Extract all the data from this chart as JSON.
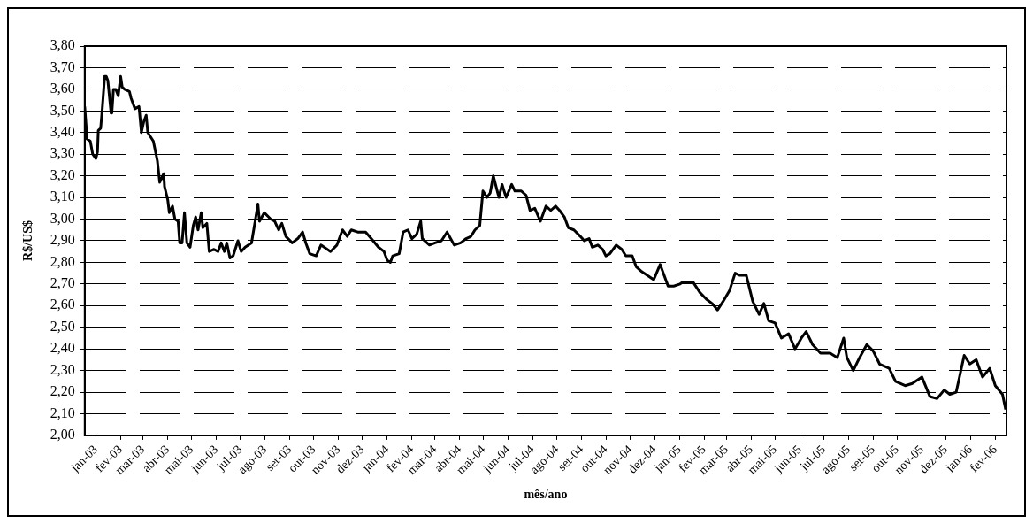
{
  "chart_data": {
    "type": "line",
    "xlabel": "mês/ano",
    "ylabel": "R$/US$",
    "x": [
      "2003-01-01",
      "2003-01-04",
      "2003-01-08",
      "2003-01-11",
      "2003-01-15",
      "2003-01-17",
      "2003-01-18",
      "2003-01-21",
      "2003-01-23",
      "2003-01-26",
      "2003-01-28",
      "2003-01-30",
      "2003-02-03",
      "2003-02-04",
      "2003-02-06",
      "2003-02-09",
      "2003-02-12",
      "2003-02-15",
      "2003-02-17",
      "2003-02-20",
      "2003-02-26",
      "2003-02-28",
      "2003-03-05",
      "2003-03-10",
      "2003-03-13",
      "2003-03-16",
      "2003-03-19",
      "2003-03-21",
      "2003-03-28",
      "2003-04-02",
      "2003-04-05",
      "2003-04-10",
      "2003-04-11",
      "2003-04-15",
      "2003-04-17",
      "2003-04-21",
      "2003-04-24",
      "2003-04-28",
      "2003-04-30",
      "2003-05-03",
      "2003-05-06",
      "2003-05-09",
      "2003-05-13",
      "2003-05-17",
      "2003-05-20",
      "2003-05-23",
      "2003-05-27",
      "2003-05-29",
      "2003-06-03",
      "2003-06-06",
      "2003-06-12",
      "2003-06-17",
      "2003-06-21",
      "2003-06-25",
      "2003-06-28",
      "2003-07-02",
      "2003-07-06",
      "2003-07-12",
      "2003-07-16",
      "2003-07-21",
      "2003-07-29",
      "2003-08-03",
      "2003-08-06",
      "2003-08-08",
      "2003-08-14",
      "2003-08-22",
      "2003-08-27",
      "2003-09-01",
      "2003-09-05",
      "2003-09-10",
      "2003-09-18",
      "2003-09-25",
      "2003-10-01",
      "2003-10-05",
      "2003-10-10",
      "2003-10-18",
      "2003-10-24",
      "2003-11-01",
      "2003-11-05",
      "2003-11-13",
      "2003-11-20",
      "2003-11-26",
      "2003-12-01",
      "2003-12-09",
      "2003-12-19",
      "2003-12-26",
      "2004-01-04",
      "2004-01-11",
      "2004-01-15",
      "2004-01-19",
      "2004-01-22",
      "2004-01-30",
      "2004-02-04",
      "2004-02-10",
      "2004-02-15",
      "2004-02-21",
      "2004-02-26",
      "2004-02-28",
      "2004-03-08",
      "2004-03-15",
      "2004-03-23",
      "2004-03-30",
      "2004-04-08",
      "2004-04-16",
      "2004-04-23",
      "2004-04-29",
      "2004-05-04",
      "2004-05-10",
      "2004-05-14",
      "2004-05-19",
      "2004-05-23",
      "2004-05-27",
      "2004-06-03",
      "2004-06-07",
      "2004-06-12",
      "2004-06-19",
      "2004-06-23",
      "2004-07-01",
      "2004-07-07",
      "2004-07-12",
      "2004-07-18",
      "2004-07-25",
      "2004-08-01",
      "2004-08-07",
      "2004-08-13",
      "2004-08-18",
      "2004-08-24",
      "2004-08-29",
      "2004-09-05",
      "2004-09-13",
      "2004-09-18",
      "2004-09-24",
      "2004-09-28",
      "2004-10-05",
      "2004-10-11",
      "2004-10-15",
      "2004-10-20",
      "2004-10-28",
      "2004-11-04",
      "2004-11-09",
      "2004-11-17",
      "2004-11-22",
      "2004-11-28",
      "2004-12-14",
      "2004-12-22",
      "2005-01-01",
      "2005-01-08",
      "2005-01-16",
      "2005-01-20",
      "2005-01-25",
      "2005-02-01",
      "2005-02-10",
      "2005-02-18",
      "2005-02-25",
      "2005-03-04",
      "2005-03-11",
      "2005-03-19",
      "2005-03-26",
      "2005-04-01",
      "2005-04-09",
      "2005-04-17",
      "2005-04-25",
      "2005-05-01",
      "2005-05-07",
      "2005-05-15",
      "2005-05-23",
      "2005-06-01",
      "2005-06-09",
      "2005-06-17",
      "2005-06-23",
      "2005-07-01",
      "2005-07-11",
      "2005-07-23",
      "2005-08-01",
      "2005-08-09",
      "2005-08-13",
      "2005-08-21",
      "2005-08-29",
      "2005-09-07",
      "2005-09-15",
      "2005-09-23",
      "2005-10-05",
      "2005-10-13",
      "2005-10-25",
      "2005-11-03",
      "2005-11-15",
      "2005-11-25",
      "2005-12-04",
      "2005-12-13",
      "2005-12-20",
      "2005-12-28",
      "2006-01-07",
      "2006-01-14",
      "2006-01-22",
      "2006-01-30",
      "2006-02-08",
      "2006-02-15",
      "2006-02-24",
      "2006-02-28"
    ],
    "series": [
      {
        "color": "#000000",
        "values": [
          3.52,
          3.37,
          3.36,
          3.3,
          3.28,
          3.31,
          3.41,
          3.42,
          3.51,
          3.66,
          3.66,
          3.64,
          3.49,
          3.49,
          3.6,
          3.6,
          3.57,
          3.66,
          3.61,
          3.6,
          3.59,
          3.56,
          3.51,
          3.52,
          3.4,
          3.45,
          3.48,
          3.4,
          3.36,
          3.27,
          3.17,
          3.21,
          3.15,
          3.09,
          3.03,
          3.06,
          3.0,
          2.99,
          2.89,
          2.89,
          3.03,
          2.89,
          2.87,
          2.97,
          3.01,
          2.95,
          3.03,
          2.96,
          2.98,
          2.85,
          2.86,
          2.85,
          2.89,
          2.85,
          2.89,
          2.82,
          2.83,
          2.9,
          2.85,
          2.87,
          2.89,
          3.0,
          3.07,
          2.99,
          3.03,
          3.0,
          2.99,
          2.95,
          2.98,
          2.92,
          2.89,
          2.91,
          2.94,
          2.89,
          2.84,
          2.83,
          2.88,
          2.86,
          2.85,
          2.88,
          2.95,
          2.92,
          2.95,
          2.94,
          2.94,
          2.91,
          2.87,
          2.85,
          2.81,
          2.8,
          2.83,
          2.84,
          2.94,
          2.95,
          2.91,
          2.93,
          2.99,
          2.91,
          2.88,
          2.89,
          2.9,
          2.94,
          2.88,
          2.89,
          2.91,
          2.92,
          2.95,
          2.97,
          3.13,
          3.1,
          3.12,
          3.2,
          3.1,
          3.16,
          3.1,
          3.16,
          3.13,
          3.13,
          3.11,
          3.04,
          3.05,
          2.99,
          3.06,
          3.04,
          3.06,
          3.04,
          3.01,
          2.96,
          2.95,
          2.92,
          2.9,
          2.91,
          2.87,
          2.88,
          2.86,
          2.83,
          2.84,
          2.88,
          2.86,
          2.83,
          2.83,
          2.78,
          2.76,
          2.72,
          2.79,
          2.69,
          2.69,
          2.7,
          2.71,
          2.71,
          2.71,
          2.66,
          2.63,
          2.61,
          2.58,
          2.62,
          2.67,
          2.75,
          2.74,
          2.74,
          2.62,
          2.56,
          2.61,
          2.53,
          2.52,
          2.45,
          2.47,
          2.4,
          2.45,
          2.48,
          2.42,
          2.38,
          2.38,
          2.36,
          2.45,
          2.36,
          2.3,
          2.36,
          2.42,
          2.39,
          2.33,
          2.31,
          2.25,
          2.23,
          2.24,
          2.27,
          2.18,
          2.17,
          2.21,
          2.19,
          2.2,
          2.37,
          2.33,
          2.35,
          2.27,
          2.31,
          2.23,
          2.19,
          2.12
        ]
      }
    ],
    "xlim": [
      "2003-01-01",
      "2006-03-01"
    ],
    "xticks": [
      {
        "value": "2003-01-15",
        "label": "jan-03"
      },
      {
        "value": "2003-02-15",
        "label": "fev-03"
      },
      {
        "value": "2003-03-15",
        "label": "mar-03"
      },
      {
        "value": "2003-04-15",
        "label": "abr-03"
      },
      {
        "value": "2003-05-15",
        "label": "mai-03"
      },
      {
        "value": "2003-06-15",
        "label": "jun-03"
      },
      {
        "value": "2003-07-15",
        "label": "jul-03"
      },
      {
        "value": "2003-08-15",
        "label": "ago-03"
      },
      {
        "value": "2003-09-15",
        "label": "set-03"
      },
      {
        "value": "2003-10-15",
        "label": "out-03"
      },
      {
        "value": "2003-11-15",
        "label": "nov-03"
      },
      {
        "value": "2003-12-15",
        "label": "dez-03"
      },
      {
        "value": "2004-01-15",
        "label": "jan-04"
      },
      {
        "value": "2004-02-15",
        "label": "fev-04"
      },
      {
        "value": "2004-03-15",
        "label": "mar-04"
      },
      {
        "value": "2004-04-15",
        "label": "abr-04"
      },
      {
        "value": "2004-05-15",
        "label": "mai-04"
      },
      {
        "value": "2004-06-15",
        "label": "jun-04"
      },
      {
        "value": "2004-07-15",
        "label": "jul-04"
      },
      {
        "value": "2004-08-15",
        "label": "ago-04"
      },
      {
        "value": "2004-09-15",
        "label": "set-04"
      },
      {
        "value": "2004-10-15",
        "label": "out-04"
      },
      {
        "value": "2004-11-15",
        "label": "nov-04"
      },
      {
        "value": "2004-12-15",
        "label": "dez-04"
      },
      {
        "value": "2005-01-15",
        "label": "jan-05"
      },
      {
        "value": "2005-02-15",
        "label": "fev-05"
      },
      {
        "value": "2005-03-15",
        "label": "mar-05"
      },
      {
        "value": "2005-04-15",
        "label": "abr-05"
      },
      {
        "value": "2005-05-15",
        "label": "mai-05"
      },
      {
        "value": "2005-06-15",
        "label": "jun-05"
      },
      {
        "value": "2005-07-15",
        "label": "jul-05"
      },
      {
        "value": "2005-08-15",
        "label": "ago-05"
      },
      {
        "value": "2005-09-15",
        "label": "set-05"
      },
      {
        "value": "2005-10-15",
        "label": "out-05"
      },
      {
        "value": "2005-11-15",
        "label": "nov-05"
      },
      {
        "value": "2005-12-15",
        "label": "dez-05"
      },
      {
        "value": "2006-01-15",
        "label": "jan-06"
      },
      {
        "value": "2006-02-15",
        "label": "fev-06"
      }
    ],
    "ylim": [
      2.0,
      3.8
    ],
    "yticks": [
      {
        "value": 2.0,
        "label": "2,00"
      },
      {
        "value": 2.1,
        "label": "2,10"
      },
      {
        "value": 2.2,
        "label": "2,20"
      },
      {
        "value": 2.3,
        "label": "2,30"
      },
      {
        "value": 2.4,
        "label": "2,40"
      },
      {
        "value": 2.5,
        "label": "2,50"
      },
      {
        "value": 2.6,
        "label": "2,60"
      },
      {
        "value": 2.7,
        "label": "2,70"
      },
      {
        "value": 2.8,
        "label": "2,80"
      },
      {
        "value": 2.9,
        "label": "2,90"
      },
      {
        "value": 3.0,
        "label": "3,00"
      },
      {
        "value": 3.1,
        "label": "3,10"
      },
      {
        "value": 3.2,
        "label": "3,20"
      },
      {
        "value": 3.3,
        "label": "3,30"
      },
      {
        "value": 3.4,
        "label": "3,40"
      },
      {
        "value": 3.5,
        "label": "3,50"
      },
      {
        "value": 3.6,
        "label": "3,60"
      },
      {
        "value": 3.7,
        "label": "3,70"
      },
      {
        "value": 3.8,
        "label": "3,80"
      }
    ],
    "grid": "y",
    "line_style": "solid",
    "marker": "none",
    "legend": false
  }
}
